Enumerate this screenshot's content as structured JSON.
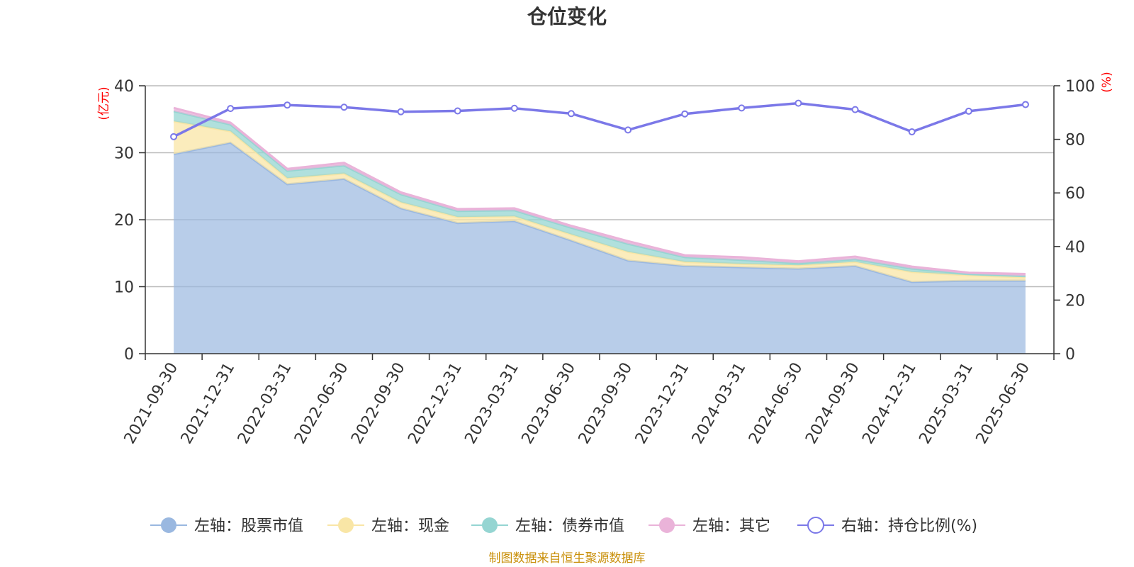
{
  "title": "仓位变化",
  "source_note": "制图数据来自恒生聚源数据库",
  "colors": {
    "stock": "#9ab8e0",
    "cash": "#f9e6a6",
    "bond": "#95d5d2",
    "other": "#eab3d9",
    "ratio": "#7b78e8",
    "axis": "#333333",
    "grid": "#bbbbbb",
    "unit": "#ff0000",
    "source": "#c9900b"
  },
  "chart_data": {
    "type": "area",
    "title": "仓位变化",
    "left_axis_label": "(亿元)",
    "right_axis_label": "(%)",
    "left_ylim": [
      0,
      40
    ],
    "left_ticks": [
      0,
      10,
      20,
      30,
      40
    ],
    "right_ylim": [
      0,
      100
    ],
    "right_ticks": [
      0,
      20,
      40,
      60,
      80,
      100
    ],
    "grid": true,
    "legend_position": "bottom",
    "categories": [
      "2021-09-30",
      "2021-12-31",
      "2022-03-31",
      "2022-06-30",
      "2022-09-30",
      "2022-12-31",
      "2023-03-31",
      "2023-06-30",
      "2023-09-30",
      "2023-12-31",
      "2024-03-31",
      "2024-06-30",
      "2024-09-30",
      "2024-12-31",
      "2025-03-31",
      "2025-06-30"
    ],
    "series": [
      {
        "name": "左轴：股票市值",
        "key": "stock",
        "axis": "left",
        "stacked": true,
        "values": [
          29.8,
          31.5,
          25.3,
          26.1,
          21.7,
          19.5,
          19.8,
          16.9,
          13.9,
          13.1,
          12.9,
          12.7,
          13.1,
          10.7,
          10.9,
          10.9
        ]
      },
      {
        "name": "左轴：现金",
        "key": "cash",
        "axis": "left",
        "stacked": true,
        "values": [
          4.9,
          1.7,
          0.9,
          0.8,
          0.9,
          0.9,
          0.7,
          0.9,
          1.3,
          0.6,
          0.5,
          0.5,
          0.6,
          1.5,
          0.8,
          0.5
        ]
      },
      {
        "name": "左轴：债券市值",
        "key": "bond",
        "axis": "left",
        "stacked": true,
        "values": [
          1.5,
          1.0,
          1.1,
          1.2,
          1.2,
          0.9,
          0.9,
          1.0,
          1.2,
          0.7,
          0.6,
          0.3,
          0.4,
          0.5,
          0.2,
          0.2
        ]
      },
      {
        "name": "左轴：其它",
        "key": "other",
        "axis": "left",
        "stacked": true,
        "values": [
          0.5,
          0.3,
          0.3,
          0.4,
          0.3,
          0.3,
          0.3,
          0.3,
          0.4,
          0.3,
          0.4,
          0.3,
          0.4,
          0.3,
          0.2,
          0.3
        ]
      },
      {
        "name": "右轴：持仓比例(%)",
        "key": "ratio",
        "axis": "right",
        "type": "line",
        "values": [
          81.0,
          91.5,
          92.8,
          92.0,
          90.3,
          90.6,
          91.6,
          89.6,
          83.5,
          89.5,
          91.7,
          93.5,
          91.1,
          82.8,
          90.5,
          93.0
        ]
      }
    ]
  }
}
